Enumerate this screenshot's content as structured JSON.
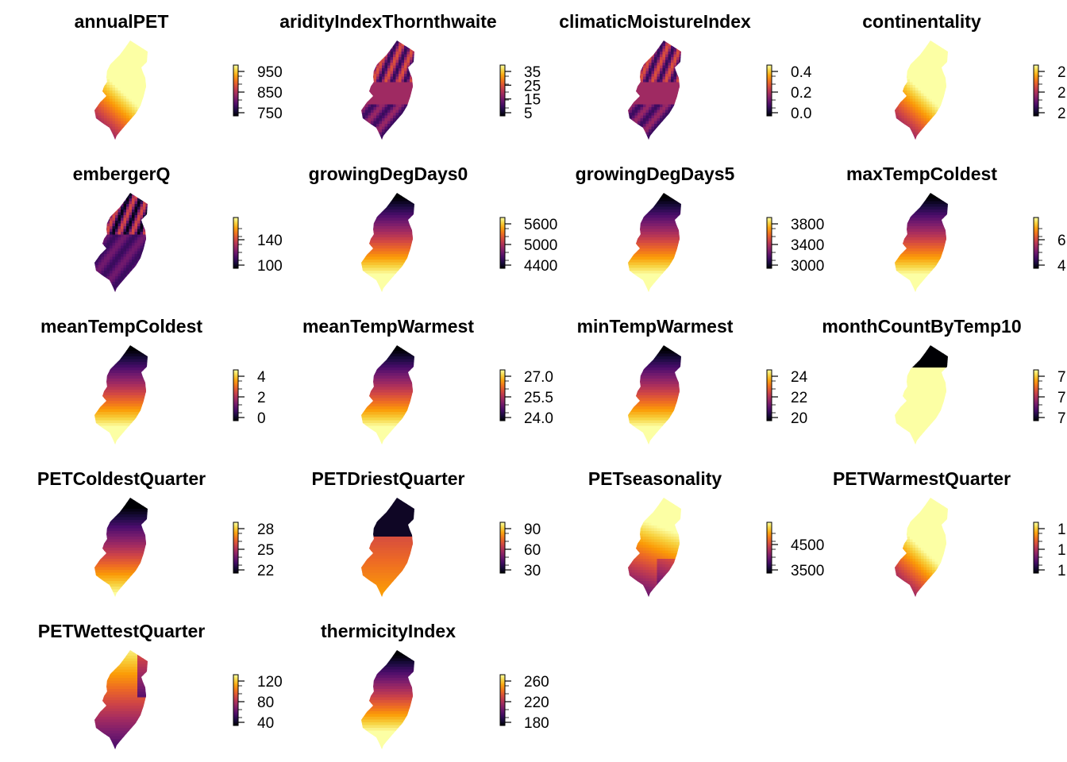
{
  "colors": {
    "palette": [
      "#000004",
      "#1b0c41",
      "#4a0c6b",
      "#781c6d",
      "#a52c60",
      "#cf4446",
      "#ed6925",
      "#fb9b06",
      "#f7d13d",
      "#fcffa4"
    ],
    "text": "#000000",
    "background": "#ffffff"
  },
  "chart_data": [
    {
      "type": "heatmap",
      "title": "annualPET",
      "pattern": "diag-dark-southwest",
      "ticks": [
        "950",
        "850",
        "750"
      ],
      "clip_right": false
    },
    {
      "type": "heatmap",
      "title": "aridityIndexThornthwaite",
      "pattern": "striped-mid",
      "ticks": [
        "35",
        "25",
        "15",
        "5"
      ],
      "clip_right": false
    },
    {
      "type": "heatmap",
      "title": "climaticMoistureIndex",
      "pattern": "striped-mid",
      "ticks": [
        "0.4",
        "0.2",
        "0.0"
      ],
      "clip_right": false
    },
    {
      "type": "heatmap",
      "title": "continentality",
      "pattern": "diag-dark-southwest",
      "ticks": [
        "2",
        "2",
        "2"
      ],
      "clip_right": true
    },
    {
      "type": "heatmap",
      "title": "embergerQ",
      "pattern": "striped-dark",
      "ticks": [
        "140",
        "100"
      ],
      "clip_right": false
    },
    {
      "type": "heatmap",
      "title": "growingDegDays0",
      "pattern": "dark-north",
      "ticks": [
        "5600",
        "5000",
        "4400"
      ],
      "clip_right": false
    },
    {
      "type": "heatmap",
      "title": "growingDegDays5",
      "pattern": "dark-north",
      "ticks": [
        "3800",
        "3400",
        "3000"
      ],
      "clip_right": false
    },
    {
      "type": "heatmap",
      "title": "maxTempColdest",
      "pattern": "dark-north",
      "ticks": [
        "6",
        "4"
      ],
      "clip_right": true
    },
    {
      "type": "heatmap",
      "title": "meanTempColdest",
      "pattern": "dark-north",
      "ticks": [
        "4",
        "2",
        "0"
      ],
      "clip_right": false
    },
    {
      "type": "heatmap",
      "title": "meanTempWarmest",
      "pattern": "dark-north",
      "ticks": [
        "27.0",
        "25.5",
        "24.0"
      ],
      "clip_right": false
    },
    {
      "type": "heatmap",
      "title": "minTempWarmest",
      "pattern": "dark-north",
      "ticks": [
        "24",
        "22",
        "20"
      ],
      "clip_right": false
    },
    {
      "type": "heatmap",
      "title": "monthCountByTemp10",
      "pattern": "binary-north",
      "ticks": [
        "7",
        "7",
        "7"
      ],
      "clip_right": true
    },
    {
      "type": "heatmap",
      "title": "PETColdestQuarter",
      "pattern": "dark-north-mild",
      "ticks": [
        "28",
        "25",
        "22"
      ],
      "clip_right": false
    },
    {
      "type": "heatmap",
      "title": "PETDriestQuarter",
      "pattern": "dark-north-sharp",
      "ticks": [
        "90",
        "60",
        "30"
      ],
      "clip_right": false
    },
    {
      "type": "heatmap",
      "title": "PETseasonality",
      "pattern": "light-north-dark-south",
      "ticks": [
        "4500",
        "3500"
      ],
      "clip_right": false
    },
    {
      "type": "heatmap",
      "title": "PETWarmestQuarter",
      "pattern": "diag-dark-southwest",
      "ticks": [
        "1",
        "1",
        "1"
      ],
      "clip_right": true
    },
    {
      "type": "heatmap",
      "title": "PETWettestQuarter",
      "pattern": "light-north-east-dark",
      "ticks": [
        "120",
        "80",
        "40"
      ],
      "clip_right": false
    },
    {
      "type": "heatmap",
      "title": "thermicityIndex",
      "pattern": "dark-north",
      "ticks": [
        "260",
        "220",
        "180"
      ],
      "clip_right": false
    }
  ]
}
